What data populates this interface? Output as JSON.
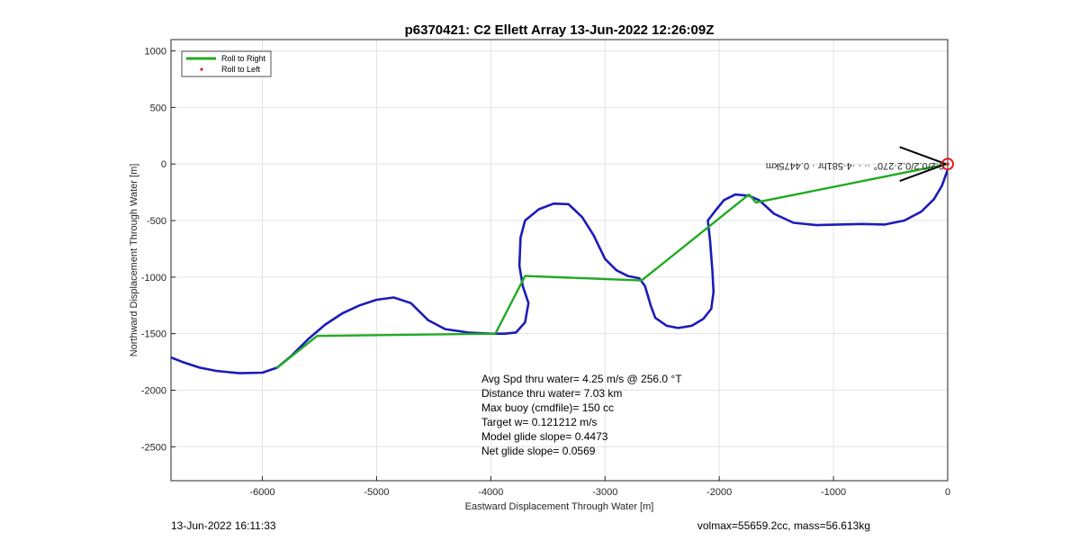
{
  "chart_data": {
    "type": "line",
    "title": "p6370421: C2 Ellett Array 13-Jun-2022 12:26:09Z",
    "xlabel": "Eastward Displacement Through Water [m]",
    "ylabel": "Northward Displacement Through Water [m]",
    "xlim": [
      -6800,
      0
    ],
    "ylim": [
      -2800,
      1100
    ],
    "xticks": [
      -6000,
      -5000,
      -4000,
      -3000,
      -2000,
      -1000,
      0
    ],
    "yticks": [
      1000,
      500,
      0,
      -500,
      -1000,
      -1500,
      -2000,
      -2500
    ],
    "grid": true,
    "legend": {
      "location": "top-left",
      "entries": [
        {
          "label": "Roll to Right",
          "color": "#22aa22",
          "style": "line"
        },
        {
          "label": "Roll to Left",
          "color": "#e02020",
          "style": "dot"
        }
      ]
    },
    "series": [
      {
        "name": "Roll to Right",
        "color": "#22aa22",
        "x": [
          -5870,
          -5520,
          -3960,
          -3700,
          -2680,
          -1740,
          -1680,
          0
        ],
        "y": [
          -1800,
          -1520,
          -1500,
          -990,
          -1030,
          -270,
          -340,
          0
        ]
      },
      {
        "name": "Roll to Left",
        "color": "#e02020",
        "x": [
          0
        ],
        "y": [
          0
        ]
      },
      {
        "name": "",
        "color": "#1c1cb8",
        "x": [
          -6800,
          -6700,
          -6550,
          -6400,
          -6200,
          -6000,
          -5870,
          -5750,
          -5600,
          -5450,
          -5300,
          -5150,
          -5000,
          -4850,
          -4700,
          -4550,
          -4400,
          -4200,
          -4000,
          -3880,
          -3780,
          -3700,
          -3670,
          -3720,
          -3750,
          -3740,
          -3700,
          -3580,
          -3450,
          -3320,
          -3200,
          -3100,
          -3000,
          -2900,
          -2800,
          -2700,
          -2650,
          -2600,
          -2560,
          -2460,
          -2360,
          -2240,
          -2140,
          -2070,
          -2050,
          -2060,
          -2080,
          -2100,
          -2040,
          -1960,
          -1860,
          -1740,
          -1650,
          -1520,
          -1350,
          -1150,
          -950,
          -750,
          -550,
          -380,
          -230,
          -120,
          -50,
          0
        ],
        "y": [
          -1710,
          -1750,
          -1800,
          -1830,
          -1850,
          -1845,
          -1800,
          -1700,
          -1550,
          -1420,
          -1320,
          -1250,
          -1200,
          -1180,
          -1230,
          -1380,
          -1460,
          -1490,
          -1500,
          -1500,
          -1490,
          -1400,
          -1230,
          -1080,
          -900,
          -650,
          -500,
          -400,
          -350,
          -355,
          -470,
          -630,
          -840,
          -940,
          -990,
          -1010,
          -1080,
          -1250,
          -1360,
          -1430,
          -1450,
          -1430,
          -1370,
          -1280,
          -1130,
          -950,
          -680,
          -500,
          -420,
          -320,
          -270,
          -280,
          -320,
          -440,
          -520,
          -540,
          -535,
          -530,
          -535,
          -500,
          -420,
          -310,
          -190,
          -50
        ]
      }
    ],
    "annotation": "0.2/0.2/0.2·270° ·· · ·4·581hr · 0.4475km",
    "stats": [
      "Avg Spd thru water=  4.25 m/s @ 256.0 °T",
      "Distance thru water=  7.03 km",
      "Max buoy (cmdfile)= 150 cc",
      "Target w= 0.121212 m/s",
      "Model glide slope= 0.4473",
      "Net glide slope= 0.0569"
    ]
  },
  "footer": {
    "left": "13-Jun-2022 16:11:33",
    "right": "volmax=55659.2cc, mass=56.613kg"
  }
}
